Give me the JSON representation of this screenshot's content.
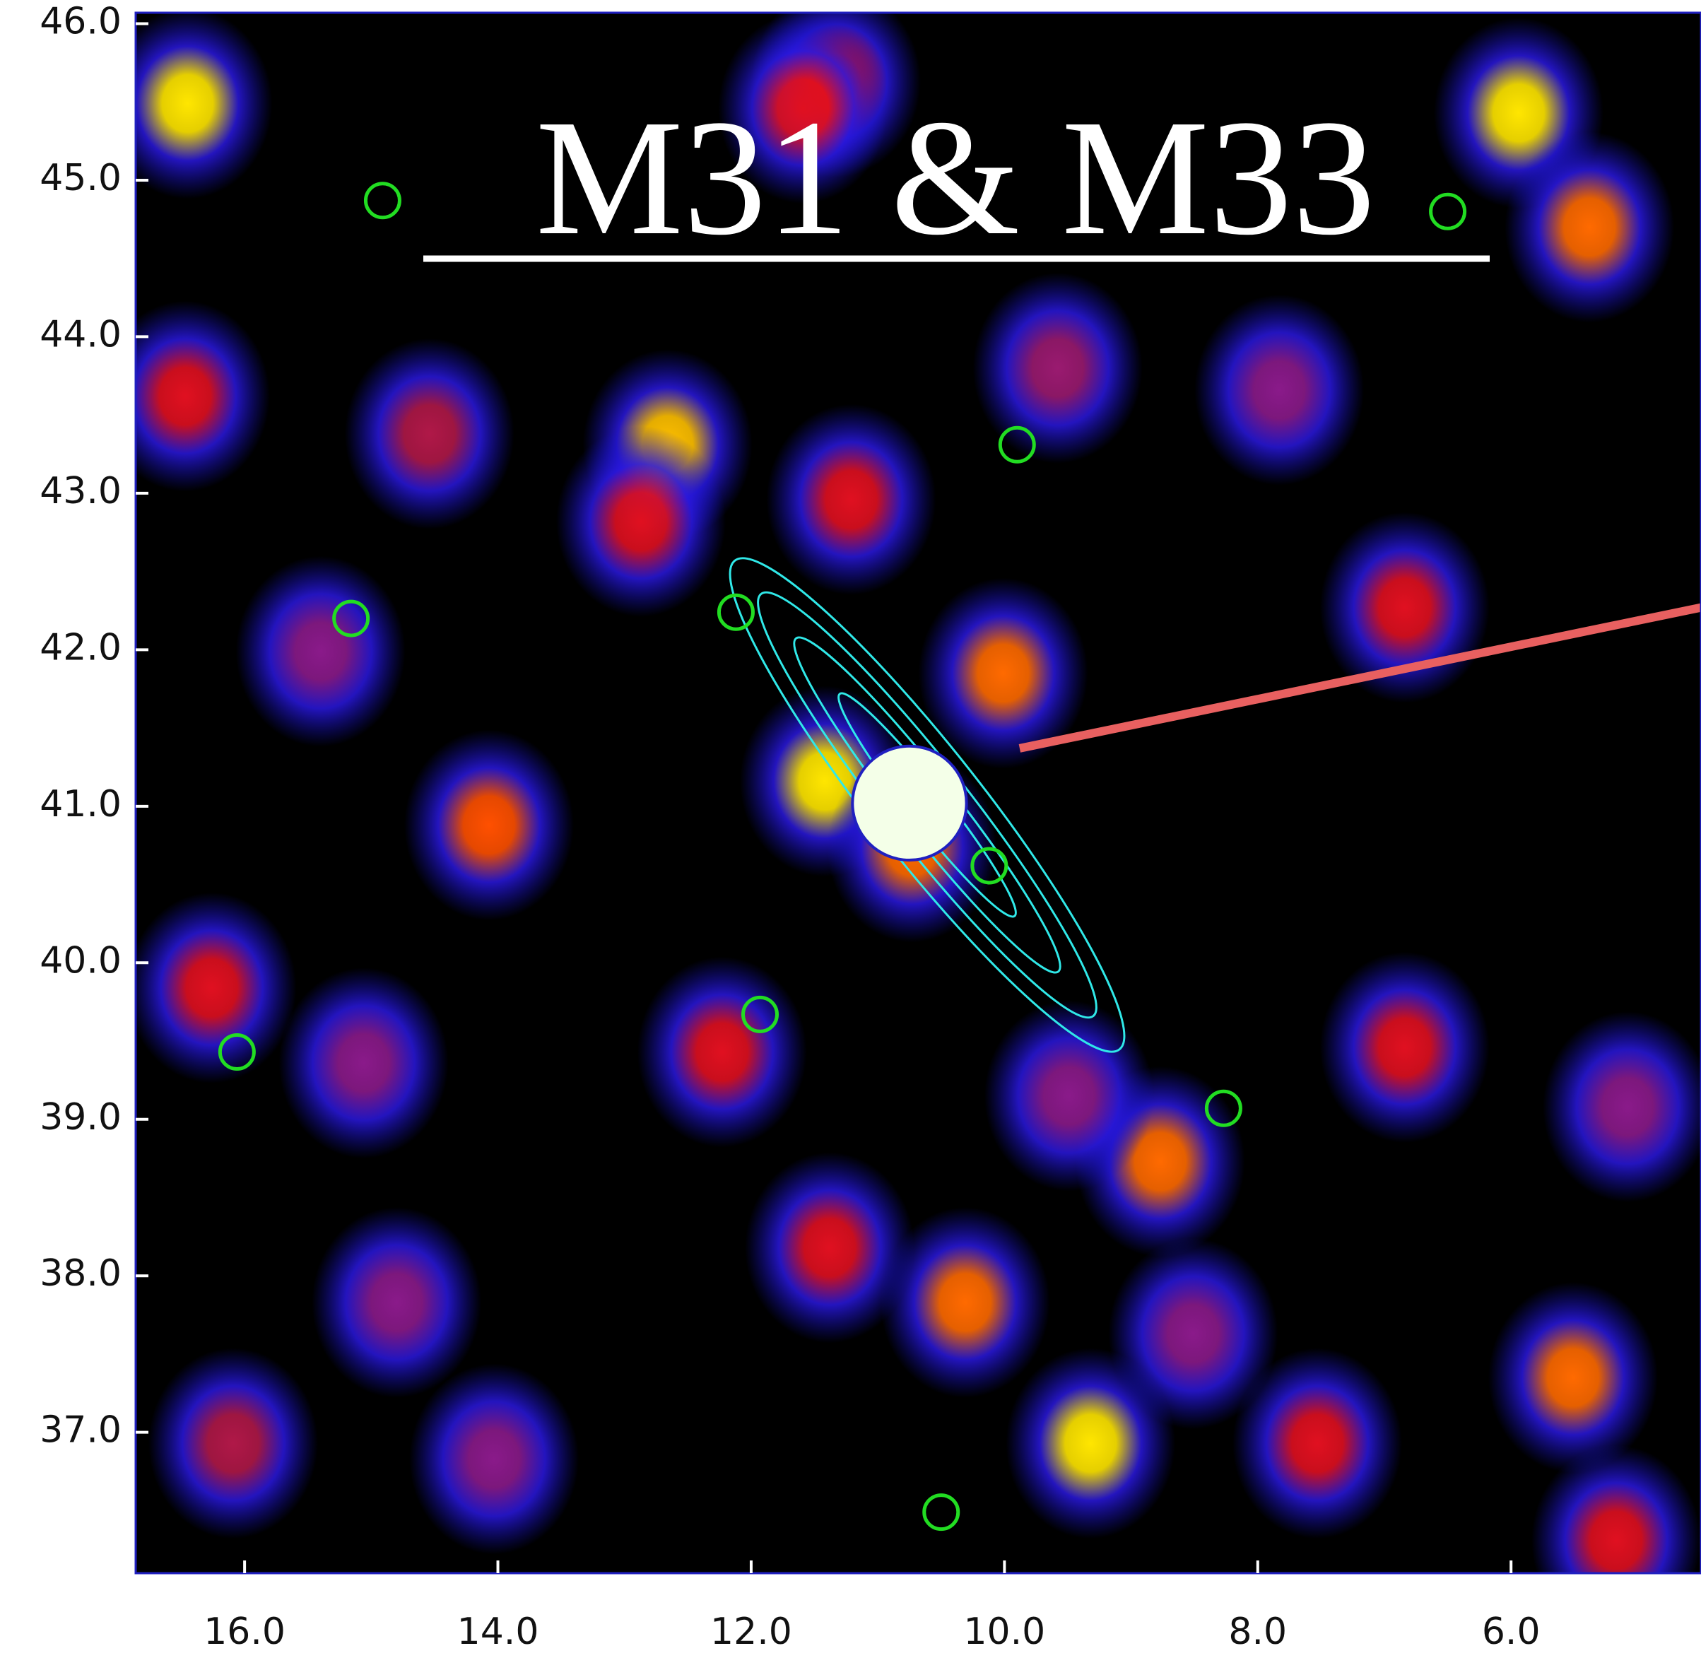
{
  "chart_data": {
    "type": "skymap",
    "title": "M31 & M33",
    "xlim": [
      16.86,
      4.5
    ],
    "ylim": [
      36.1,
      46.07
    ],
    "xticks": [
      {
        "value": 16,
        "label": "16.0"
      },
      {
        "value": 14,
        "label": "14.0"
      },
      {
        "value": 12,
        "label": "12.0"
      },
      {
        "value": 10,
        "label": "10.0"
      },
      {
        "value": 8,
        "label": "8.0"
      },
      {
        "value": 6,
        "label": "6.0"
      }
    ],
    "yticks": [
      {
        "value": 37,
        "label": "37.0"
      },
      {
        "value": 38,
        "label": "38.0"
      },
      {
        "value": 39,
        "label": "39.0"
      },
      {
        "value": 40,
        "label": "40.0"
      },
      {
        "value": 41,
        "label": "41.0"
      },
      {
        "value": 42,
        "label": "42.0"
      },
      {
        "value": 43,
        "label": "43.0"
      },
      {
        "value": 44,
        "label": "44.0"
      },
      {
        "value": 45,
        "label": "45.0"
      },
      {
        "value": 46,
        "label": "46.0"
      }
    ],
    "hotspots": {
      "x": [
        16.45,
        11.33,
        11.59,
        5.94,
        5.38,
        16.47,
        12.66,
        12.87,
        11.21,
        14.54,
        9.58,
        10.01,
        11.42,
        10.73,
        14.07,
        15.4,
        6.84,
        16.26,
        12.23,
        6.84,
        8.77,
        9.49,
        11.38,
        10.31,
        9.32,
        5.51,
        7.53,
        5.17,
        16.09,
        14.03,
        14.8,
        15.06,
        8.51,
        5.08,
        7.83
      ],
      "y": [
        45.49,
        45.63,
        45.46,
        45.43,
        44.7,
        43.62,
        43.31,
        42.82,
        42.96,
        43.38,
        43.8,
        41.85,
        41.16,
        40.74,
        40.88,
        41.99,
        42.27,
        39.84,
        39.43,
        39.46,
        38.73,
        39.15,
        38.18,
        37.83,
        36.93,
        37.35,
        36.93,
        36.31,
        36.93,
        36.83,
        37.83,
        39.36,
        37.63,
        39.08,
        43.66
      ],
      "colors": [
        "#ffe600",
        "#e01020",
        "#e01020",
        "#ffe600",
        "#ff6a00",
        "#e01020",
        "#ffc000",
        "#e01020",
        "#e01020",
        "#b01848",
        "#9a1a70",
        "#ff6a00",
        "#ffe600",
        "#ff6a00",
        "#ff5000",
        "#8a1a8a",
        "#e01020",
        "#e01020",
        "#e01020",
        "#e01020",
        "#ff6a00",
        "#8a1a8a",
        "#e01020",
        "#ff6a00",
        "#ffe600",
        "#ff6a00",
        "#e01020",
        "#e01020",
        "#b01848",
        "#8a1a8a",
        "#8a1a8a",
        "#8a1a8a",
        "#8a1a8a",
        "#8a1a8a",
        "#8a1a8a"
      ]
    },
    "sources": {
      "x": [
        14.91,
        6.5,
        9.9,
        15.16,
        12.12,
        10.12,
        11.93,
        16.06,
        8.27,
        10.5
      ],
      "y": [
        44.87,
        44.8,
        43.31,
        42.2,
        42.24,
        40.62,
        39.67,
        39.43,
        39.07,
        36.49
      ],
      "color": "#22dd22"
    },
    "core": {
      "x": 10.75,
      "y": 41.02,
      "radius": 0.45,
      "color": "#2020c0"
    },
    "track": {
      "x": [
        9.88,
        4.5
      ],
      "y": [
        41.37,
        42.27
      ],
      "color": "#e86060"
    }
  }
}
